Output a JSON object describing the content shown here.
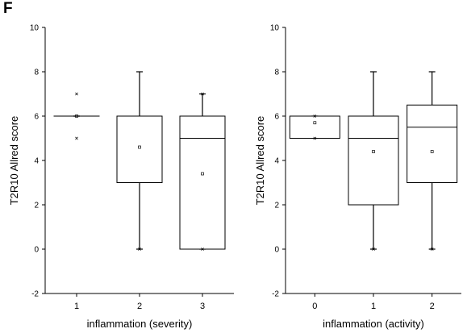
{
  "panel_label": "F",
  "chart_data": [
    {
      "type": "box",
      "xlabel": "inflammation (severity)",
      "ylabel": "T2R10 Allred score",
      "ylim": [
        -2,
        10
      ],
      "yticks": [
        -2,
        0,
        2,
        4,
        6,
        8,
        10
      ],
      "categories": [
        "1",
        "2",
        "3"
      ],
      "boxes": [
        {
          "category": "1",
          "min": 6,
          "q1": 6,
          "median": 6,
          "q3": 6,
          "max": 6,
          "mean": 6,
          "outliers": [
            7,
            5
          ]
        },
        {
          "category": "2",
          "min": 0,
          "q1": 3,
          "median": 6,
          "q3": 6,
          "max": 8,
          "mean": 4.6,
          "outliers": [
            0
          ]
        },
        {
          "category": "3",
          "min": 0,
          "q1": 0,
          "median": 5,
          "q3": 6,
          "max": 7,
          "mean": 3.4,
          "outliers": [
            7,
            0
          ]
        }
      ]
    },
    {
      "type": "box",
      "xlabel": "inflammation (activity)",
      "ylabel": "T2R10 Allred score",
      "ylim": [
        -2,
        10
      ],
      "yticks": [
        -2,
        0,
        2,
        4,
        6,
        8,
        10
      ],
      "categories": [
        "0",
        "1",
        "2"
      ],
      "boxes": [
        {
          "category": "0",
          "min": 5,
          "q1": 5,
          "median": 5,
          "q3": 6,
          "max": 6,
          "mean": 5.7,
          "outliers": [
            6,
            5
          ]
        },
        {
          "category": "1",
          "min": 0,
          "q1": 2,
          "median": 5,
          "q3": 6,
          "max": 8,
          "mean": 4.4,
          "outliers": [
            0
          ]
        },
        {
          "category": "2",
          "min": 0,
          "q1": 3,
          "median": 5.5,
          "q3": 6.5,
          "max": 8,
          "mean": 4.4,
          "outliers": [
            0
          ]
        }
      ]
    }
  ]
}
